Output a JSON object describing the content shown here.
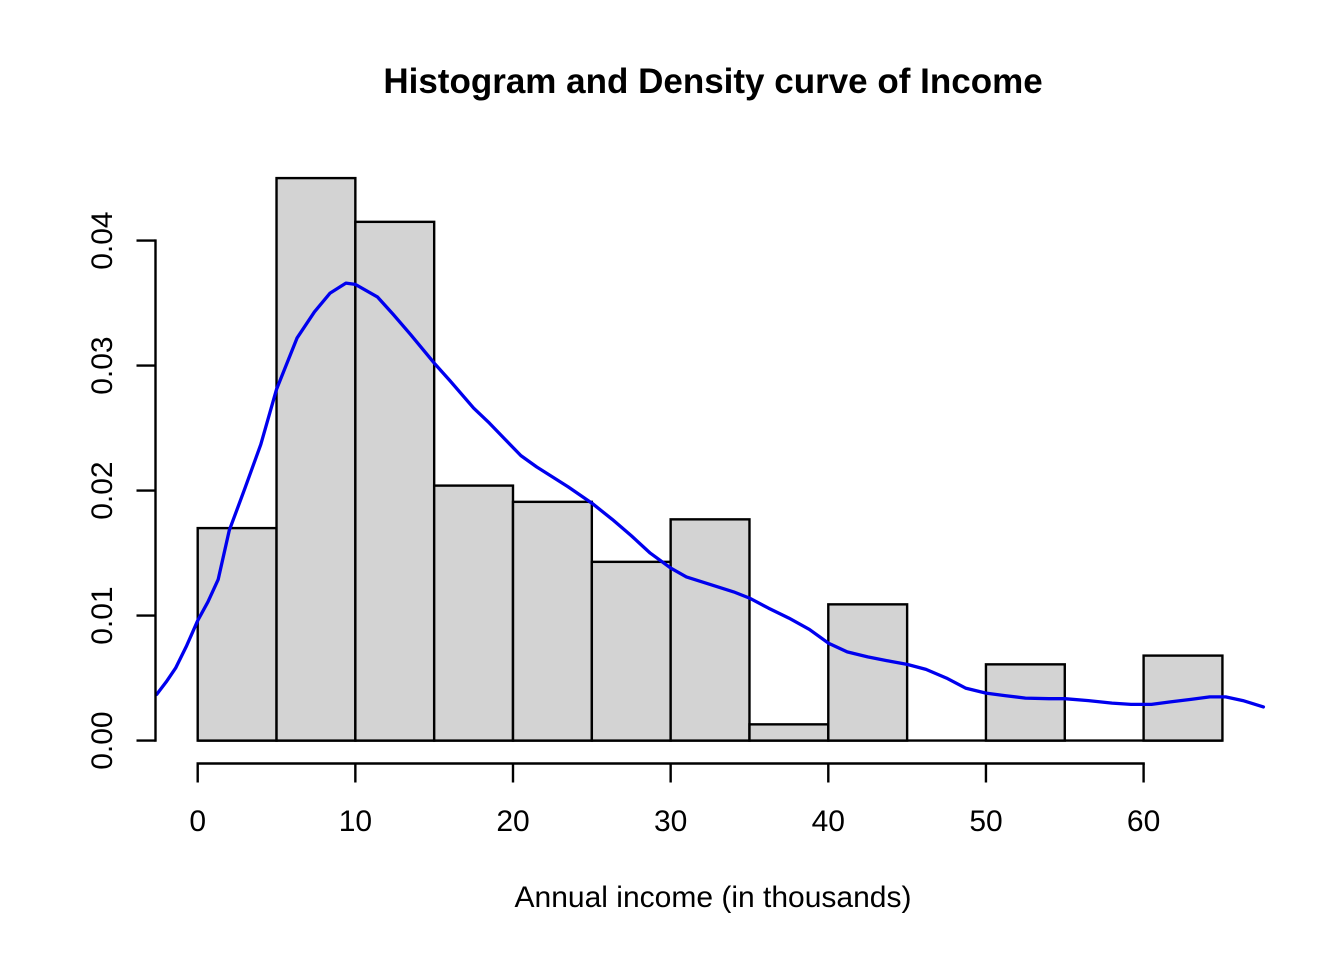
{
  "title": "Histogram and Density curve of Income",
  "x_axis": {
    "label": "Annual income (in thousands)",
    "tick_labels": [
      "0",
      "10",
      "20",
      "30",
      "40",
      "50",
      "60"
    ]
  },
  "y_axis": {
    "label": "",
    "tick_labels": [
      "0.00",
      "0.01",
      "0.02",
      "0.03",
      "0.04"
    ]
  },
  "colors": {
    "background": "#ffffff",
    "bar_fill": "#d3d3d3",
    "bar_border": "#000000",
    "density_line": "#0000ee",
    "axis": "#000000",
    "text": "#000000"
  },
  "chart_data": {
    "type": "histogram_with_density_line",
    "title": "Histogram and Density curve of Income",
    "xlabel": "Annual income (in thousands)",
    "ylabel": "",
    "grid": false,
    "legend": "none",
    "bin_width": 5,
    "bins": [
      {
        "from": 0,
        "to": 5,
        "density": 0.017
      },
      {
        "from": 5,
        "to": 10,
        "density": 0.045
      },
      {
        "from": 10,
        "to": 15,
        "density": 0.0415
      },
      {
        "from": 15,
        "to": 20,
        "density": 0.0204
      },
      {
        "from": 20,
        "to": 25,
        "density": 0.0191
      },
      {
        "from": 25,
        "to": 30,
        "density": 0.0143
      },
      {
        "from": 30,
        "to": 35,
        "density": 0.0177
      },
      {
        "from": 35,
        "to": 40,
        "density": 0.0013
      },
      {
        "from": 40,
        "to": 45,
        "density": 0.0109
      },
      {
        "from": 45,
        "to": 50,
        "density": 0.0
      },
      {
        "from": 50,
        "to": 55,
        "density": 0.0061
      },
      {
        "from": 55,
        "to": 60,
        "density": 0.0
      },
      {
        "from": 60,
        "to": 65,
        "density": 0.0068
      }
    ],
    "x_ticks": [
      0,
      10,
      20,
      30,
      40,
      50,
      60
    ],
    "y_ticks": [
      0,
      0.01,
      0.02,
      0.03,
      0.04
    ],
    "xlim": [
      -2.6,
      67.6
    ],
    "ylim": [
      0,
      0.0455
    ],
    "density_curve": {
      "name": "kernel density estimate",
      "peak": {
        "x": 9.4,
        "density": 0.0366
      },
      "points": [
        [
          -2.6,
          0.0037
        ],
        [
          -2.0,
          0.0047
        ],
        [
          -1.4,
          0.0058
        ],
        [
          -0.7,
          0.0076
        ],
        [
          0,
          0.0096
        ],
        [
          0.65,
          0.0111
        ],
        [
          1.3,
          0.0129
        ],
        [
          2,
          0.0168
        ],
        [
          3,
          0.0202
        ],
        [
          4,
          0.0237
        ],
        [
          5,
          0.0281
        ],
        [
          6.3,
          0.0322
        ],
        [
          7.4,
          0.0343
        ],
        [
          8.4,
          0.0358
        ],
        [
          9.4,
          0.0366
        ],
        [
          10,
          0.0365
        ],
        [
          11.4,
          0.0355
        ],
        [
          12.4,
          0.0341
        ],
        [
          13.5,
          0.0325
        ],
        [
          15,
          0.0302
        ],
        [
          16,
          0.0288
        ],
        [
          17.5,
          0.0266
        ],
        [
          18.5,
          0.0254
        ],
        [
          19.5,
          0.0241
        ],
        [
          20.5,
          0.0228
        ],
        [
          21.5,
          0.0219
        ],
        [
          22.5,
          0.0211
        ],
        [
          23.5,
          0.0203
        ],
        [
          25,
          0.019
        ],
        [
          26.3,
          0.0177
        ],
        [
          27.5,
          0.0164
        ],
        [
          28.7,
          0.015
        ],
        [
          30,
          0.0138
        ],
        [
          31,
          0.0131
        ],
        [
          32.5,
          0.0125
        ],
        [
          34,
          0.0119
        ],
        [
          35,
          0.0114
        ],
        [
          36.2,
          0.0106
        ],
        [
          37.5,
          0.0098
        ],
        [
          38.8,
          0.0089
        ],
        [
          40,
          0.0078
        ],
        [
          41.2,
          0.0071
        ],
        [
          42.5,
          0.0067
        ],
        [
          43.7,
          0.0064
        ],
        [
          45,
          0.0061
        ],
        [
          46.2,
          0.0057
        ],
        [
          47.5,
          0.005
        ],
        [
          48.7,
          0.0042
        ],
        [
          50,
          0.0038
        ],
        [
          51.2,
          0.0036
        ],
        [
          52.5,
          0.0034
        ],
        [
          54,
          0.00335
        ],
        [
          55,
          0.00335
        ],
        [
          56.5,
          0.0032
        ],
        [
          58,
          0.003
        ],
        [
          59.2,
          0.0029
        ],
        [
          60.5,
          0.0029
        ],
        [
          61.7,
          0.0031
        ],
        [
          63,
          0.0033
        ],
        [
          64.2,
          0.0035
        ],
        [
          65.2,
          0.0035
        ],
        [
          66.3,
          0.0032
        ],
        [
          67.6,
          0.0027
        ]
      ]
    }
  }
}
